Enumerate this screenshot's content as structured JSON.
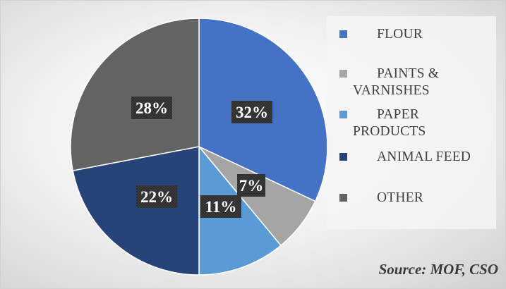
{
  "chart_data": {
    "type": "pie",
    "series": [
      {
        "name": "FLOUR",
        "value": 32,
        "label": "32%",
        "color": "#4472C4"
      },
      {
        "name": "PAINTS & VARNISHES",
        "value": 7,
        "label": "7%",
        "color": "#A5A5A5"
      },
      {
        "name": "PAPER PRODUCTS",
        "value": 11,
        "label": "11%",
        "color": "#5B9BD5"
      },
      {
        "name": "ANIMAL FEED",
        "value": 22,
        "label": "22%",
        "color": "#264478"
      },
      {
        "name": "OTHER",
        "value": 28,
        "label": "28%",
        "color": "#636363"
      }
    ],
    "legend": "right",
    "start_angle": "12 o'clock, clockwise"
  },
  "source": "Source: MOF, CSO"
}
